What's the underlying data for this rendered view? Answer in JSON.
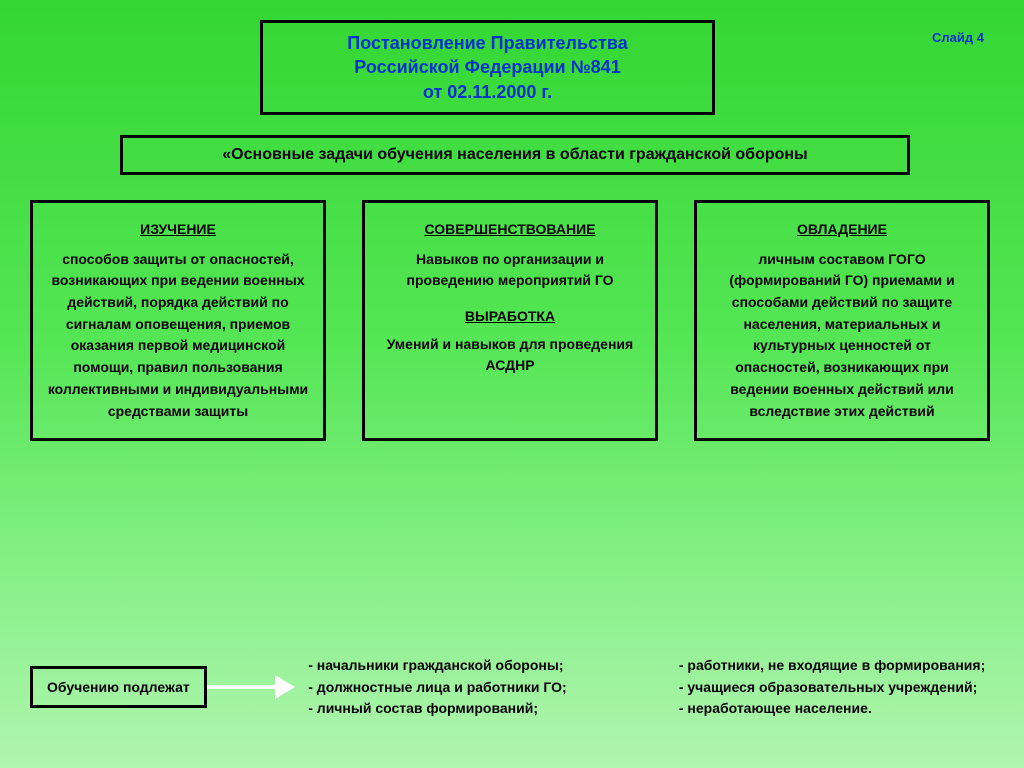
{
  "slide_label": "Слайд 4",
  "title": {
    "line1": "Постановление Правительства",
    "line2": "Российской Федерации №841",
    "line3": "от 02.11.2000 г.",
    "color": "#0033cc",
    "border_color": "#000000",
    "fontsize": 18
  },
  "subtitle": {
    "text": "«Основные задачи обучения населения в области гражданской обороны",
    "color": "#000000",
    "border_color": "#000000",
    "fontsize": 16
  },
  "columns": [
    {
      "head": "ИЗУЧЕНИЕ",
      "body": "способов защиты от опасностей, возникающих при ведении военных действий, порядка действий по сигналам оповещения, приемов оказания первой медицинской помощи, правил пользования коллективными и индивидуальными средствами защиты"
    },
    {
      "head": "СОВЕРШЕНСТВОВАНИЕ",
      "body": "Навыков по организации и проведению мероприятий ГО",
      "head2": "ВЫРАБОТКА",
      "body2": "Умений и навыков для проведения АСДНР"
    },
    {
      "head": "ОВЛАДЕНИЕ",
      "body": "личным составом ГОГО (формирований ГО) приемами и способами действий по защите населения, материальных и культурных ценностей от опасностей, возникающих при ведении военных действий или вследствие этих действий"
    }
  ],
  "bottom": {
    "learn_label": "Обучению подлежат",
    "list1": [
      "- начальники гражданской обороны;",
      "- должностные лица и работники ГО;",
      "- личный состав формирований;"
    ],
    "list2": [
      "- работники, не входящие в формирования;",
      "- учащиеся образовательных учреждений;",
      "- неработающее  население."
    ]
  },
  "style": {
    "bg_gradient_top": "#33d633",
    "bg_gradient_bottom": "#b0f5b0",
    "box_border": "#000000",
    "box_border_width": 3,
    "arrow_color": "#ffffff",
    "text_color": "#000000",
    "font_family": "Arial",
    "body_fontsize": 14
  }
}
